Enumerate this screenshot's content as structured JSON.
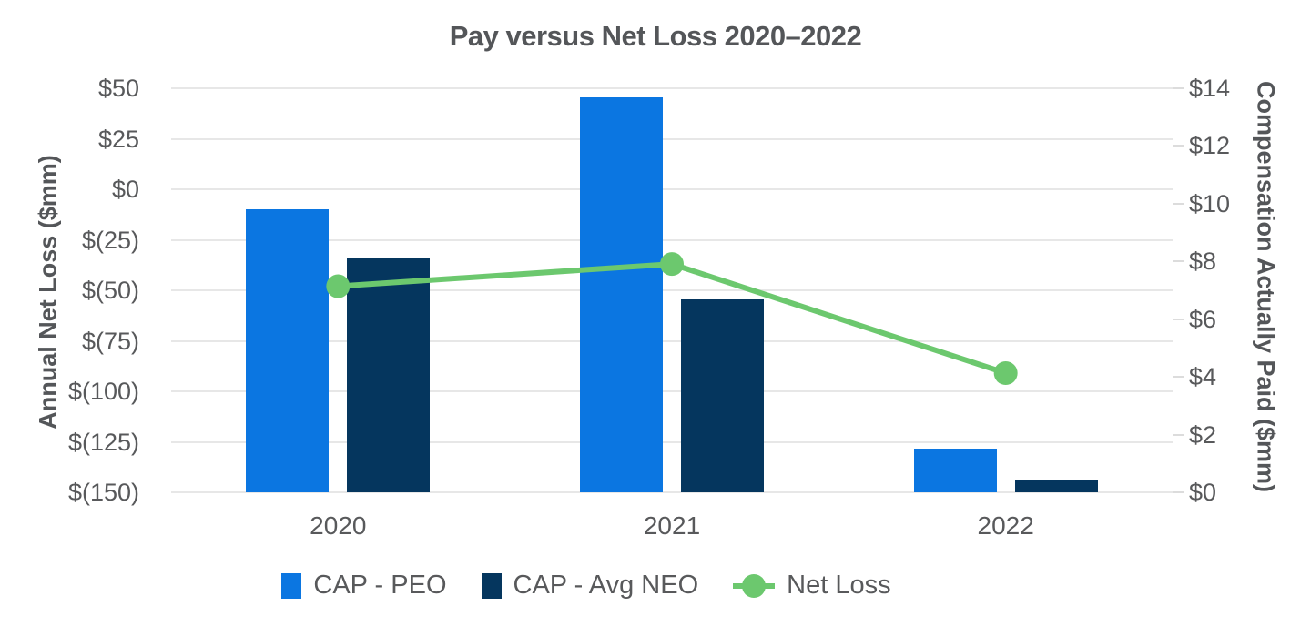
{
  "chart": {
    "title": "Pay versus Net Loss 2020–2022",
    "left_axis": {
      "title": "Annual Net Loss ($mm)",
      "tick_labels": [
        "$50",
        "$25",
        "$0",
        "$(25)",
        "$(50)",
        "$(75)",
        "$(100)",
        "$(125)",
        "$(150)"
      ]
    },
    "right_axis": {
      "title": "Compensation Actually Paid ($mm)",
      "tick_labels": [
        "$14",
        "$12",
        "$10",
        "$8",
        "$6",
        "$4",
        "$2",
        "$0"
      ]
    },
    "colors": {
      "cap_peo_blue": "#0B76E1",
      "cap_avg_neo_navy": "#05365E",
      "net_loss_green": "#6CC86E",
      "gridline": "#E7E7E7",
      "text_gray": "#58595B"
    }
  },
  "chart_data": {
    "type": "bar",
    "subtype": "grouped bars with overlaid line (dual axis)",
    "title": "Pay versus Net Loss 2020–2022",
    "categories": [
      "2020",
      "2021",
      "2022"
    ],
    "series": [
      {
        "name": "CAP - PEO",
        "type": "bar",
        "axis": "right",
        "color": "#0B76E1",
        "values": [
          9.8,
          13.7,
          1.5
        ]
      },
      {
        "name": "CAP - Avg NEO",
        "type": "bar",
        "axis": "right",
        "color": "#05365E",
        "values": [
          8.1,
          6.7,
          0.45
        ]
      },
      {
        "name": "Net Loss",
        "type": "line",
        "axis": "left",
        "color": "#6CC86E",
        "values": [
          -48,
          -37,
          -91
        ]
      }
    ],
    "left_ylabel": "Annual Net Loss ($mm)",
    "right_ylabel": "Compensation Actually Paid ($mm)",
    "left_ylim": [
      -150,
      50
    ],
    "right_ylim": [
      0,
      14
    ],
    "grid": "horizontal",
    "legend_position": "bottom"
  }
}
